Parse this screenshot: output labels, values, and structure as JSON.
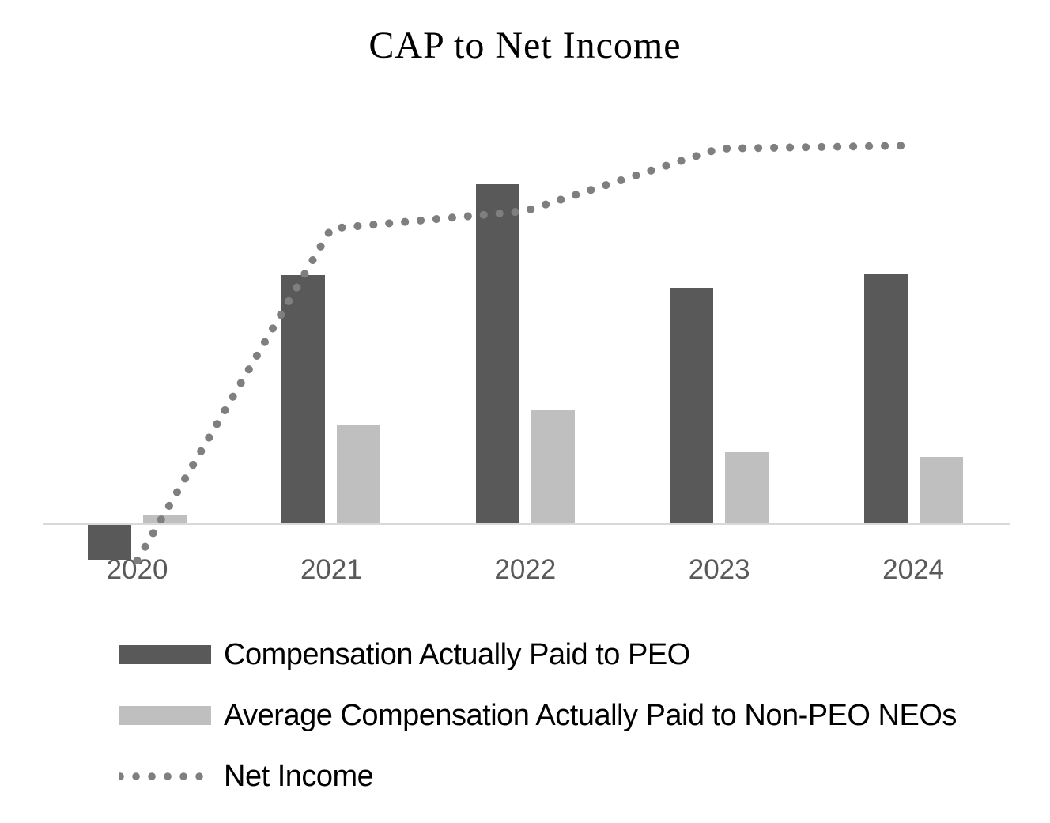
{
  "title": "CAP to Net Income",
  "legend": {
    "items": [
      {
        "id": "peo",
        "label": "Compensation Actually Paid to PEO",
        "swatch": "bar",
        "color": "#595959"
      },
      {
        "id": "nonpeo",
        "label": "Average Compensation Actually Paid to Non-PEO NEOs",
        "swatch": "bar",
        "color": "#bfbfbf"
      },
      {
        "id": "net-income",
        "label": "Net Income",
        "swatch": "dotted-line",
        "color": "#7f7f7f"
      }
    ]
  },
  "chart_data": {
    "type": "combo",
    "title": "CAP to Net Income",
    "categories": [
      "2020",
      "2021",
      "2022",
      "2023",
      "2024"
    ],
    "series": [
      {
        "id": "peo",
        "name": "Compensation Actually Paid to PEO",
        "type": "bar",
        "color": "#595959",
        "values": [
          -45,
          315,
          430,
          299,
          316
        ]
      },
      {
        "id": "nonpeo",
        "name": "Average Compensation Actually Paid to Non-PEO NEOs",
        "type": "bar",
        "color": "#bfbfbf",
        "values": [
          11,
          126,
          144,
          91,
          85
        ]
      },
      {
        "id": "net-income",
        "name": "Net Income",
        "type": "line",
        "line_style": "dotted",
        "color": "#7f7f7f",
        "values": [
          -46,
          374,
          396,
          475,
          479
        ]
      }
    ],
    "value_axis": {
      "visible": false,
      "baseline": 0,
      "units": "relative units (no numeric axis labels shown in chart)"
    },
    "category_axis": {
      "line_color": "#d9d9d9",
      "label_color": "#595959"
    },
    "gridlines": false,
    "legend_position": "bottom-left"
  }
}
